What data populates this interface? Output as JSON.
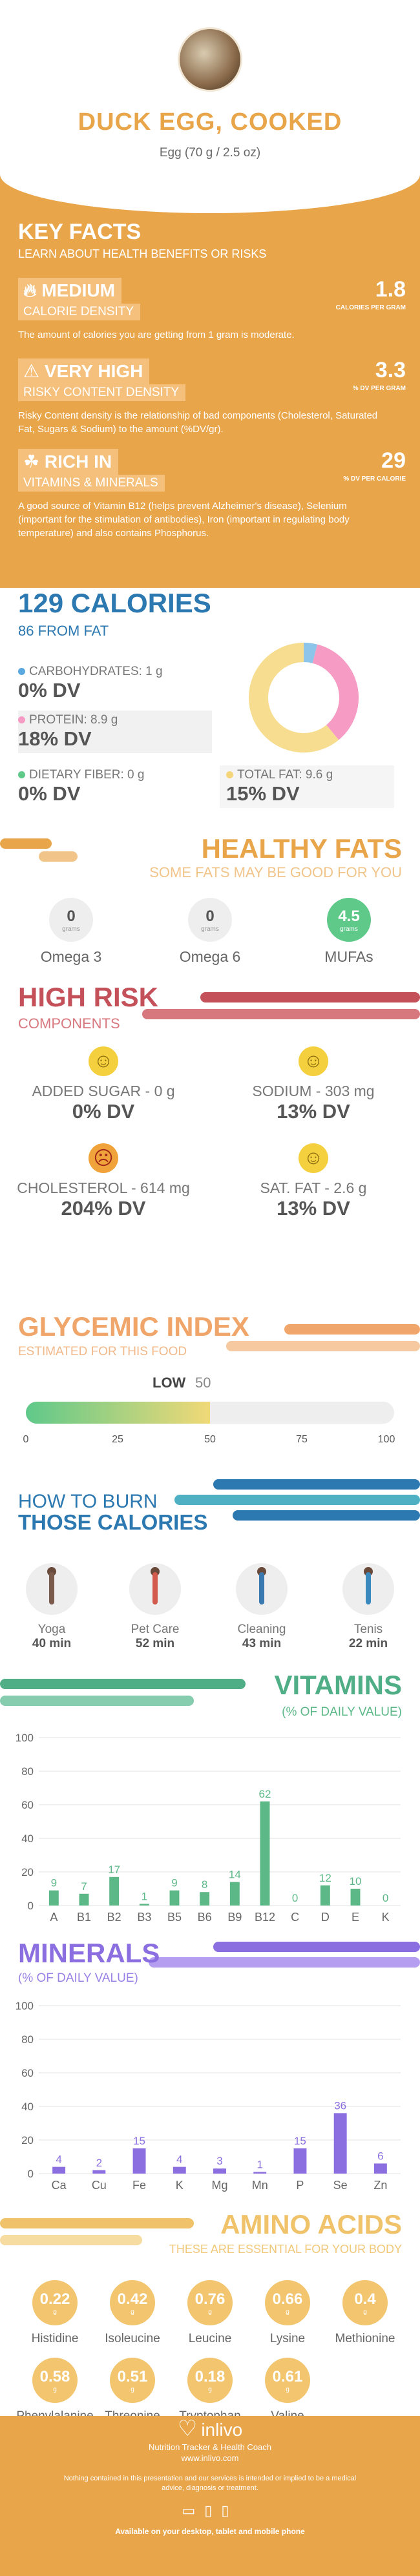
{
  "header": {
    "title": "DUCK EGG, COOKED",
    "serving": "Egg (70 g / 2.5 oz)"
  },
  "key_facts": {
    "title": "KEY FACTS",
    "subtitle": "LEARN ABOUT HEALTH BENEFITS OR RISKS",
    "facts": [
      {
        "level": "MEDIUM",
        "label": "CALORIE DENSITY",
        "value": "1.8",
        "unit": "CALORIES PER GRAM",
        "desc": "The amount of calories you are getting from 1 gram is moderate."
      },
      {
        "level": "VERY HIGH",
        "label": "RISKY CONTENT DENSITY",
        "value": "3.3",
        "unit": "% DV PER GRAM",
        "desc": "Risky Content density is the relationship of bad components (Cholesterol, Saturated Fat, Sugars & Sodium) to the amount (%DV/gr)."
      },
      {
        "level": "RICH  IN",
        "label": "VITAMINS & MINERALS",
        "value": "29",
        "unit": "% DV PER CALORIE",
        "desc": "A good source of Vitamin B12 (helps prevent Alzheimer's disease), Selenium (important for the stimulation of antibodies), Iron (important in regulating body temperature) and also contains Phosphorus."
      }
    ]
  },
  "calories": {
    "title": "129 CALORIES",
    "subtitle": "86 FROM FAT",
    "macros": [
      {
        "label": "CARBOHYDRATES: 1 g",
        "dv": "0% DV",
        "color": "#5aa9e0"
      },
      {
        "label": "PROTEIN: 8.9 g",
        "dv": "18% DV",
        "color": "#f59bc4"
      },
      {
        "label": "DIETARY FIBER: 0 g",
        "dv": "0% DV",
        "color": "#5fc98a"
      },
      {
        "label": "TOTAL FAT: 9.6 g",
        "dv": "15% DV",
        "color": "#f5d57a"
      }
    ],
    "donut": [
      {
        "name": "carbs",
        "value": 4,
        "color": "#8dc4ea"
      },
      {
        "name": "protein",
        "value": 35,
        "color": "#f59bc4"
      },
      {
        "name": "fat",
        "value": 61,
        "color": "#f6dd8f"
      }
    ]
  },
  "healthy_fats": {
    "title": "HEALTHY FATS",
    "subtitle": "SOME FATS MAY BE GOOD FOR YOU",
    "unit": "grams",
    "items": [
      {
        "label": "Omega 3",
        "value": "0"
      },
      {
        "label": "Omega 6",
        "value": "0"
      },
      {
        "label": "MUFAs",
        "value": "4.5"
      }
    ]
  },
  "high_risk": {
    "title": "HIGH RISK",
    "subtitle": "COMPONENTS",
    "items": [
      {
        "label": "ADDED SUGAR - 0 g",
        "dv": "0% DV"
      },
      {
        "label": "SODIUM - 303 mg",
        "dv": "13% DV"
      },
      {
        "label": "CHOLESTEROL - 614 mg",
        "dv": "204% DV"
      },
      {
        "label": "SAT. FAT - 2.6 g",
        "dv": "13% DV"
      }
    ]
  },
  "glycemic": {
    "title": "GLYCEMIC INDEX",
    "subtitle": "ESTIMATED FOR THIS FOOD",
    "level": "LOW",
    "value": "50",
    "value_num": 50,
    "ticks": [
      "0",
      "25",
      "50",
      "75",
      "100"
    ]
  },
  "burn": {
    "title1": "HOW TO BURN",
    "title2": "THOSE CALORIES",
    "items": [
      {
        "label": "Yoga",
        "minutes": "40 min"
      },
      {
        "label": "Pet Care",
        "minutes": "52 min"
      },
      {
        "label": "Cleaning",
        "minutes": "43 min"
      },
      {
        "label": "Tenis",
        "minutes": "22 min"
      }
    ]
  },
  "vitamins": {
    "title": "VITAMINS",
    "subtitle": "(% OF DAILY VALUE)"
  },
  "minerals": {
    "title": "MINERALS",
    "subtitle": "(% OF DAILY VALUE)"
  },
  "chart_data": [
    {
      "type": "bar",
      "categories": [
        "A",
        "B1",
        "B2",
        "B3",
        "B5",
        "B6",
        "B9",
        "B12",
        "C",
        "D",
        "E",
        "K"
      ],
      "values": [
        9,
        7,
        17,
        1,
        9,
        8,
        14,
        62,
        0,
        12,
        10,
        0
      ],
      "labels": [
        "9",
        "7",
        "17",
        "1",
        "9",
        "8",
        "14",
        "62",
        "0",
        "12",
        "10",
        "0"
      ],
      "yticks": [
        "0",
        "20",
        "40",
        "60",
        "80",
        "100"
      ],
      "ylim": [
        0,
        100
      ],
      "color": "#5cb887",
      "grid": true
    },
    {
      "type": "bar",
      "categories": [
        "Ca",
        "Cu",
        "Fe",
        "K",
        "Mg",
        "Mn",
        "P",
        "Se",
        "Zn"
      ],
      "values": [
        4,
        2,
        15,
        4,
        3,
        1,
        15,
        36,
        6
      ],
      "labels": [
        "4",
        "2",
        "15",
        "4",
        "3",
        "1",
        "15",
        "36",
        "6"
      ],
      "yticks": [
        "0",
        "20",
        "40",
        "60",
        "80",
        "100"
      ],
      "ylim": [
        0,
        100
      ],
      "color": "#8b6fe0",
      "grid": true
    }
  ],
  "amino": {
    "title": "AMINO ACIDS",
    "subtitle": "THESE ARE ESSENTIAL FOR YOUR BODY",
    "unit": "g",
    "items": [
      {
        "label": "Histidine",
        "value": "0.22"
      },
      {
        "label": "Isoleucine",
        "value": "0.42"
      },
      {
        "label": "Leucine",
        "value": "0.76"
      },
      {
        "label": "Lysine",
        "value": "0.66"
      },
      {
        "label": "Methionine",
        "value": "0.4"
      },
      {
        "label": "Phenylalanine",
        "value": "0.58"
      },
      {
        "label": "Threonine",
        "value": "0.51"
      },
      {
        "label": "Tryptophan",
        "value": "0.18"
      },
      {
        "label": "Valine",
        "value": "0.61"
      }
    ]
  },
  "footer": {
    "brand": "inlivo",
    "line1": "Nutrition Tracker & Health Coach",
    "line2": "www.inlivo.com",
    "note": "Nothing contained in this presentation and our services is intended or implied to be a medical advice, diagnosis or treatment.",
    "avail": "Available on your desktop, tablet and mobile phone"
  }
}
